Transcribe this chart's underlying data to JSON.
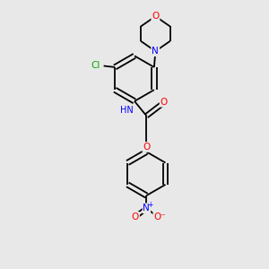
{
  "background_color": "#e8e8e8",
  "bond_color": "#000000",
  "atom_colors": {
    "O": "#ff0000",
    "N": "#0000ff",
    "Cl": "#00aa00",
    "C": "#000000",
    "H": "#4a9090"
  },
  "figsize": [
    3.0,
    3.0
  ],
  "dpi": 100,
  "lw": 1.3
}
